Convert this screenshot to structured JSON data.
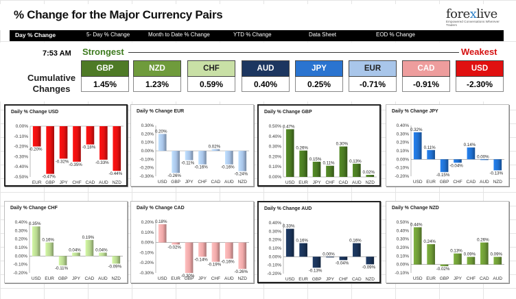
{
  "header": {
    "title": "% Change for the Major Currency Pairs",
    "logo_main_a": "fore",
    "logo_x": "x",
    "logo_main_b": "live",
    "logo_sub": "Empowered Conversations Wherever Traders"
  },
  "nav": {
    "items": [
      "Day % Change",
      "5- Day % Change",
      "Month to Date % Change",
      "YTD % Change",
      "Data Sheet",
      "EOD % Change"
    ]
  },
  "summary": {
    "time": "7:53 AM",
    "strongest": "Strongest",
    "weakest": "Weakest",
    "cumulative_label_1": "Cumulative",
    "cumulative_label_2": "Changes",
    "pairs": [
      {
        "name": "GBP",
        "value": "1.45%",
        "bg": "#4e7a26",
        "fg": "#ffffff"
      },
      {
        "name": "NZD",
        "value": "1.23%",
        "bg": "#6f9b3c",
        "fg": "#ffffff"
      },
      {
        "name": "CHF",
        "value": "0.59%",
        "bg": "#c9e0a6",
        "fg": "#222222"
      },
      {
        "name": "AUD",
        "value": "0.40%",
        "bg": "#1c3660",
        "fg": "#ffffff"
      },
      {
        "name": "JPY",
        "value": "0.25%",
        "bg": "#2a74d0",
        "fg": "#ffffff"
      },
      {
        "name": "EUR",
        "value": "-0.71%",
        "bg": "#a9c6ea",
        "fg": "#222222"
      },
      {
        "name": "CAD",
        "value": "-0.91%",
        "bg": "#ee9d9d",
        "fg": "#ffffff"
      },
      {
        "name": "USD",
        "value": "-2.30%",
        "bg": "#e01010",
        "fg": "#ffffff"
      }
    ]
  },
  "chart_data": [
    {
      "type": "bar",
      "title": "Daily % Change USD",
      "categories": [
        "EUR",
        "GBP",
        "JPY",
        "CHF",
        "CAD",
        "AUD",
        "NZD"
      ],
      "values": [
        -0.2,
        -0.47,
        -0.32,
        -0.35,
        -0.18,
        -0.33,
        -0.44
      ],
      "labels": [
        "-0.20%",
        "-0.47%",
        "-0.32%",
        "-0.35%",
        "-0.18%",
        "-0.33%",
        "-0.44%"
      ],
      "ylim": [
        -0.5,
        0.0
      ],
      "ticks": [
        "0.00%",
        "-0.10%",
        "-0.20%",
        "-0.30%",
        "-0.40%",
        "-0.50%"
      ],
      "color": "#e81010"
    },
    {
      "type": "bar",
      "title": "Daily % Change EUR",
      "categories": [
        "USD",
        "GBP",
        "JPY",
        "CHF",
        "CAD",
        "AUD",
        "NZD"
      ],
      "values": [
        0.2,
        -0.26,
        -0.11,
        -0.16,
        0.02,
        -0.16,
        -0.24
      ],
      "labels": [
        "0.20%",
        "-0.26%",
        "-0.11%",
        "-0.16%",
        "0.02%",
        "-0.16%",
        "-0.24%"
      ],
      "ylim": [
        -0.3,
        0.3
      ],
      "ticks": [
        "0.30%",
        "0.20%",
        "0.10%",
        "0.00%",
        "-0.10%",
        "-0.20%",
        "-0.30%"
      ],
      "color": "#a8c4e8"
    },
    {
      "type": "bar",
      "title": "Daily % Change GBP",
      "categories": [
        "USD",
        "EUR",
        "JPY",
        "CHF",
        "CAD",
        "AUD",
        "NZD"
      ],
      "values": [
        0.47,
        0.26,
        0.15,
        0.11,
        0.3,
        0.13,
        0.02
      ],
      "labels": [
        "0.47%",
        "0.26%",
        "0.15%",
        "0.11%",
        "0.30%",
        "0.13%",
        "0.02%"
      ],
      "ylim": [
        0.0,
        0.5
      ],
      "ticks": [
        "0.50%",
        "0.40%",
        "0.30%",
        "0.20%",
        "0.10%",
        "0.00%"
      ],
      "color": "#4a7a22"
    },
    {
      "type": "bar",
      "title": "Daily % Change JPY",
      "categories": [
        "USD",
        "EUR",
        "GBP",
        "CHF",
        "CAD",
        "AUD",
        "NZD"
      ],
      "values": [
        0.32,
        0.11,
        -0.15,
        -0.04,
        0.14,
        0.0,
        -0.13
      ],
      "labels": [
        "0.32%",
        "0.11%",
        "-0.15%",
        "-0.04%",
        "0.14%",
        "0.00%",
        "-0.13%"
      ],
      "ylim": [
        -0.2,
        0.4
      ],
      "ticks": [
        "0.40%",
        "0.30%",
        "0.20%",
        "0.10%",
        "0.00%",
        "-0.10%",
        "-0.20%"
      ],
      "color": "#2070d0"
    },
    {
      "type": "bar",
      "title": "Daily % Change CHF",
      "categories": [
        "USD",
        "EUR",
        "GBP",
        "JPY",
        "CAD",
        "AUD",
        "NZD"
      ],
      "values": [
        0.35,
        0.16,
        -0.11,
        0.04,
        0.19,
        0.04,
        -0.09
      ],
      "labels": [
        "0.35%",
        "0.16%",
        "-0.11%",
        "0.04%",
        "0.19%",
        "0.04%",
        "-0.09%"
      ],
      "ylim": [
        -0.2,
        0.4
      ],
      "ticks": [
        "0.40%",
        "0.30%",
        "0.20%",
        "0.10%",
        "0.00%",
        "-0.10%",
        "-0.20%"
      ],
      "color": "#b8d890"
    },
    {
      "type": "bar",
      "title": "Daily % Change CAD",
      "categories": [
        "USD",
        "EUR",
        "GBP",
        "JPY",
        "CHF",
        "AUD",
        "NZD"
      ],
      "values": [
        0.18,
        -0.02,
        -0.3,
        -0.14,
        -0.19,
        -0.16,
        -0.26
      ],
      "labels": [
        "0.18%",
        "-0.02%",
        "-0.30%",
        "-0.14%",
        "-0.19%",
        "-0.16%",
        "-0.26%"
      ],
      "ylim": [
        -0.3,
        0.2
      ],
      "ticks": [
        "0.20%",
        "0.10%",
        "0.00%",
        "-0.10%",
        "-0.20%",
        "-0.30%"
      ],
      "color": "#f0a8a8"
    },
    {
      "type": "bar",
      "title": "Daily % Change AUD",
      "categories": [
        "USD",
        "EUR",
        "GBP",
        "JPY",
        "CHF",
        "CAD",
        "NZD"
      ],
      "values": [
        0.33,
        0.16,
        -0.13,
        0.0,
        -0.04,
        0.16,
        -0.09
      ],
      "labels": [
        "0.33%",
        "0.16%",
        "-0.13%",
        "0.00%",
        "-0.04%",
        "0.16%",
        "-0.09%"
      ],
      "ylim": [
        -0.2,
        0.4
      ],
      "ticks": [
        "0.40%",
        "0.30%",
        "0.20%",
        "0.10%",
        "0.00%",
        "-0.10%",
        "-0.20%"
      ],
      "color": "#1a3358"
    },
    {
      "type": "bar",
      "title": "Daily % Change NZD",
      "categories": [
        "USD",
        "EUR",
        "GBP",
        "JPY",
        "CHF",
        "CAD",
        "AUD"
      ],
      "values": [
        0.44,
        0.24,
        -0.02,
        0.13,
        0.09,
        0.26,
        0.09
      ],
      "labels": [
        "0.44%",
        "0.24%",
        "-0.02%",
        "0.13%",
        "0.09%",
        "0.26%",
        "0.09%"
      ],
      "ylim": [
        -0.1,
        0.5
      ],
      "ticks": [
        "0.50%",
        "0.40%",
        "0.30%",
        "0.20%",
        "0.10%",
        "0.00%",
        "-0.10%"
      ],
      "color": "#6e9a36"
    }
  ]
}
